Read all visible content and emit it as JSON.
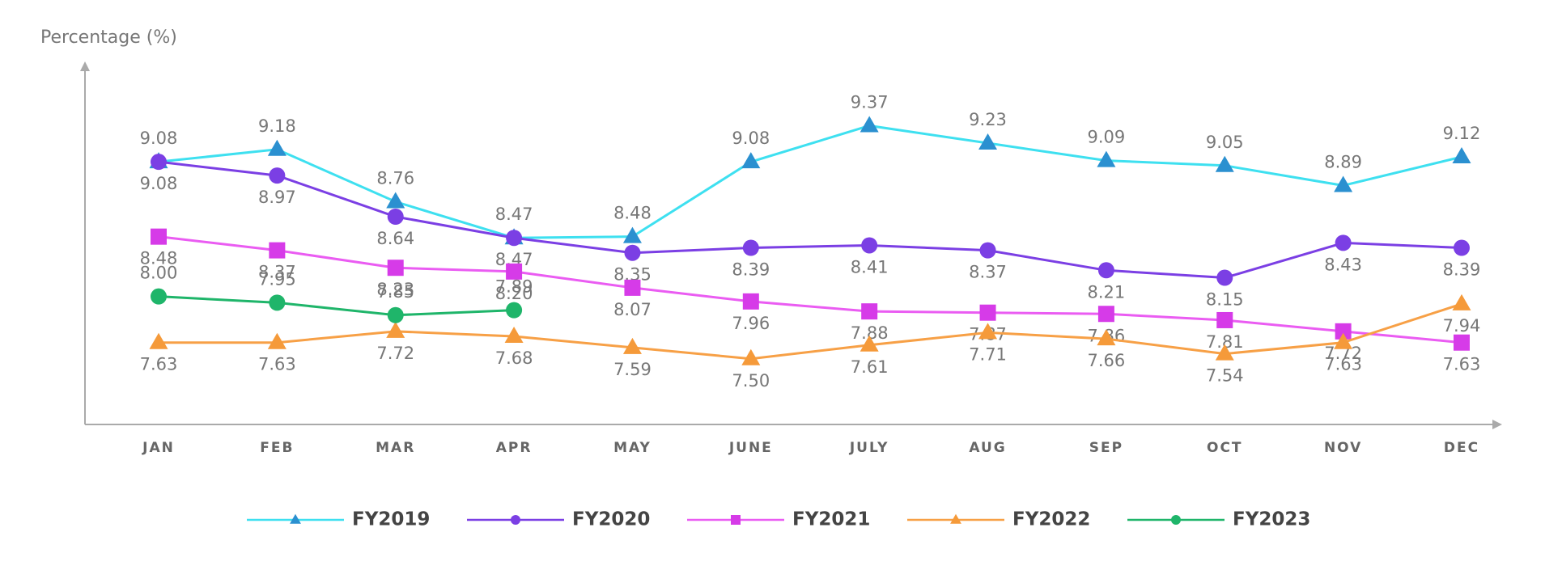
{
  "chart_data": {
    "type": "line",
    "y_axis_label": "Percentage (%)",
    "categories": [
      "JAN",
      "FEB",
      "MAR",
      "APR",
      "MAY",
      "JUNE",
      "JULY",
      "AUG",
      "SEP",
      "OCT",
      "NOV",
      "DEC"
    ],
    "ylim": [
      7.2,
      9.6
    ],
    "legend": "bottom",
    "series": [
      {
        "name": "FY2019",
        "color": "#3ee0f0",
        "marker_color": "#2b90d0",
        "marker": "triangle",
        "values": [
          9.08,
          9.18,
          8.76,
          8.47,
          8.48,
          9.08,
          9.37,
          9.23,
          9.09,
          9.05,
          8.89,
          9.12
        ],
        "value_labels": [
          "9.08",
          "9.18",
          "8.76",
          "8.47",
          "8.48",
          "9.08",
          "9.37",
          "9.23",
          "9.09",
          "9.05",
          "8.89",
          "9.12"
        ]
      },
      {
        "name": "FY2020",
        "color": "#7b3fe4",
        "marker_color": "#7b3fe4",
        "marker": "circle",
        "values": [
          9.08,
          8.97,
          8.64,
          8.47,
          8.35,
          8.39,
          8.41,
          8.37,
          8.21,
          8.15,
          8.43,
          8.39
        ],
        "value_labels": [
          "9.08",
          "8.97",
          "8.64",
          "8.47",
          "8.35",
          "8.39",
          "8.41",
          "8.37",
          "8.21",
          "8.15",
          "8.43",
          "8.39"
        ]
      },
      {
        "name": "FY2021",
        "color": "#ea5cf2",
        "marker_color": "#d63be8",
        "marker": "square",
        "values": [
          8.48,
          8.37,
          8.23,
          8.2,
          8.07,
          7.96,
          7.88,
          7.87,
          7.86,
          7.81,
          7.72,
          7.63
        ],
        "value_labels": [
          "8.48",
          "8.37",
          "8.23",
          "8.20",
          "8.07",
          "7.96",
          "7.88",
          "7.87",
          "7.86",
          "7.81",
          "7.72",
          "7.63"
        ]
      },
      {
        "name": "FY2022",
        "color": "#f7a046",
        "marker_color": "#f59a3a",
        "marker": "triangle",
        "values": [
          7.63,
          7.63,
          7.72,
          7.68,
          7.59,
          7.5,
          7.61,
          7.71,
          7.66,
          7.54,
          7.63,
          7.94
        ],
        "value_labels": [
          "7.63",
          "7.63",
          "7.72",
          "7.68",
          "7.59",
          "7.50",
          "7.61",
          "7.71",
          "7.66",
          "7.54",
          "7.63",
          "7.94"
        ]
      },
      {
        "name": "FY2023",
        "color": "#1fb56a",
        "marker_color": "#1fb56a",
        "marker": "circle",
        "values": [
          8.0,
          7.95,
          7.85,
          7.89,
          null,
          null,
          null,
          null,
          null,
          null,
          null,
          null
        ],
        "value_labels": [
          "8.00",
          "7.95",
          "7.85",
          "7.89",
          null,
          null,
          null,
          null,
          null,
          null,
          null,
          null
        ]
      }
    ]
  }
}
